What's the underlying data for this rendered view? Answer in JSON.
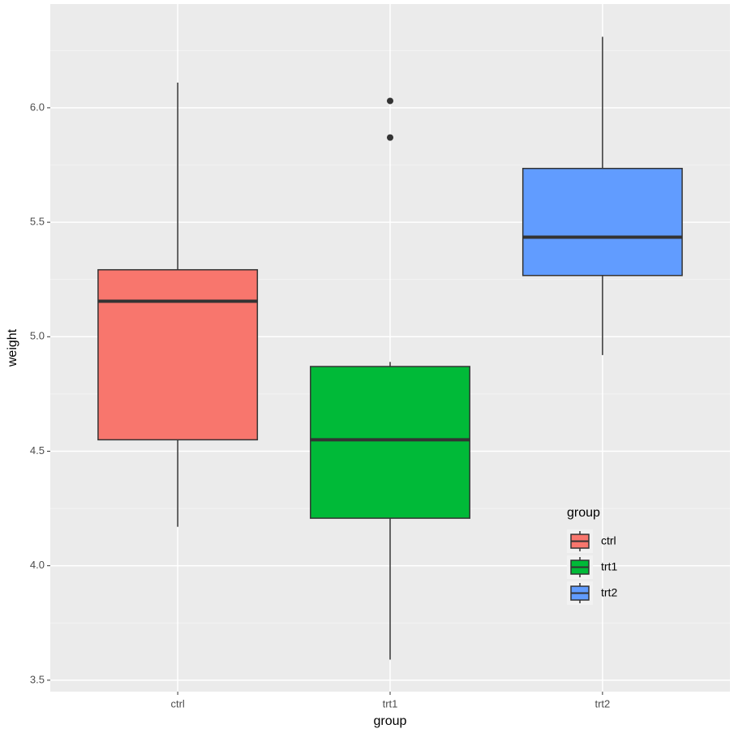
{
  "chart_data": {
    "type": "box",
    "x_label": "group",
    "y_label": "weight",
    "categories": [
      "ctrl",
      "trt1",
      "trt2"
    ],
    "series": [
      {
        "name": "ctrl",
        "color": "#F8766D",
        "min": 4.17,
        "q1": 4.55,
        "median": 5.155,
        "q3": 5.2925,
        "max": 6.11,
        "outliers": []
      },
      {
        "name": "trt1",
        "color": "#00BA38",
        "min": 3.59,
        "q1": 4.2075,
        "median": 4.55,
        "q3": 4.87,
        "max": 4.89,
        "outliers": [
          5.87,
          6.03
        ]
      },
      {
        "name": "trt2",
        "color": "#619CFF",
        "min": 4.92,
        "q1": 5.2675,
        "median": 5.435,
        "q3": 5.735,
        "max": 6.31,
        "outliers": []
      }
    ],
    "legend_title": "group",
    "legend_position": "inside-bottom-right",
    "ylim": [
      3.45,
      6.453
    ],
    "yticks": [
      3.5,
      {
        "value": 4,
        "label": "4.0"
      },
      4.5,
      {
        "value": 5,
        "label": "5.0"
      },
      5.5,
      {
        "value": 6,
        "label": "6.0"
      }
    ],
    "grid": true
  }
}
